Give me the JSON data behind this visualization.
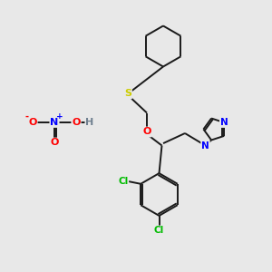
{
  "background_color": "#e8e8e8",
  "figsize": [
    3.0,
    3.0
  ],
  "dpi": 100,
  "bond_color": "#1a1a1a",
  "bond_width": 1.4,
  "atom_colors": {
    "N": "#0000ff",
    "O": "#ff0000",
    "S": "#cccc00",
    "Cl": "#00bb00",
    "H": "#708090",
    "C": "#1a1a1a"
  },
  "xlim": [
    0,
    10
  ],
  "ylim": [
    0,
    10
  ]
}
